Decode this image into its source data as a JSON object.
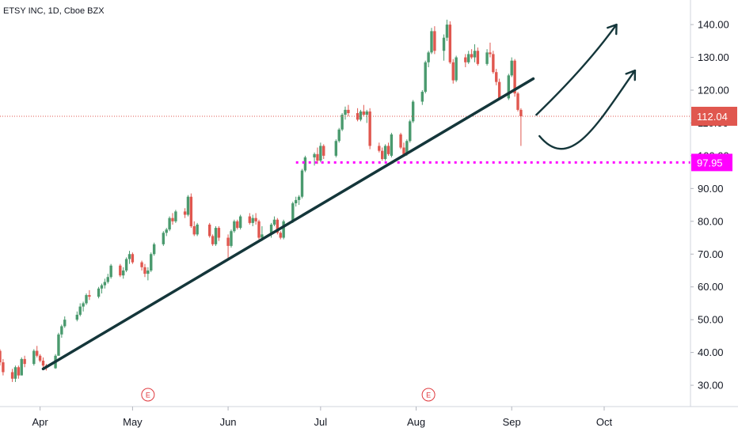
{
  "header": {
    "title": "ETSY INC, 1D, Cboe BZX"
  },
  "colors": {
    "up": "#4a9a6e",
    "down": "#e0574f",
    "trendline": "#14363a",
    "support": "#ff00ff",
    "last_price_bg": "#e0574f",
    "earnings": "#e03a3e"
  },
  "chart_data": {
    "type": "candlestick",
    "title": "ETSY INC, 1D, Cboe BZX",
    "y_ticks": [
      "30.00",
      "40.00",
      "50.00",
      "60.00",
      "70.00",
      "80.00",
      "90.00",
      "100.00",
      "110.00",
      "120.00",
      "130.00",
      "140.00"
    ],
    "y_tick_values": [
      30,
      40,
      50,
      60,
      70,
      80,
      90,
      100,
      110,
      120,
      130,
      140
    ],
    "ylim": [
      23.5,
      147.5
    ],
    "x_ticks": [
      "Apr",
      "May",
      "Jun",
      "Jul",
      "Aug",
      "Sep",
      "Oct"
    ],
    "x_tick_dates": [
      "2020-04-01",
      "2020-05-01",
      "2020-06-01",
      "2020-07-01",
      "2020-08-01",
      "2020-09-01",
      "2020-10-01"
    ],
    "xlim": [
      "2020-03-19",
      "2020-10-29"
    ],
    "last_price": {
      "label": "112.04",
      "value": 112.04
    },
    "support_level": {
      "label": "97.95",
      "value": 97.95
    },
    "earnings_markers": [
      {
        "label": "E",
        "date": "2020-05-06"
      },
      {
        "label": "E",
        "date": "2020-08-05"
      }
    ],
    "trendline": {
      "from": [
        "2020-04-02",
        35.0
      ],
      "to": [
        "2020-09-08",
        123.5
      ]
    },
    "projected_paths": [
      {
        "name": "bullish-path",
        "points": [
          [
            "2020-09-09",
            112.5
          ],
          [
            "2020-09-25",
            127
          ],
          [
            "2020-10-05",
            140
          ]
        ]
      },
      {
        "name": "pullback-path",
        "points": [
          [
            "2020-09-10",
            106
          ],
          [
            "2020-09-20",
            100
          ],
          [
            "2020-09-29",
            110
          ],
          [
            "2020-10-11",
            126
          ]
        ]
      }
    ],
    "candles": [
      [
        "2020-03-18",
        40.5,
        43,
        38,
        40.5
      ],
      [
        "2020-03-19",
        40.5,
        41,
        36,
        37
      ],
      [
        "2020-03-20",
        37,
        38,
        33,
        34
      ],
      [
        "2020-03-23",
        34,
        35,
        31,
        32
      ],
      [
        "2020-03-24",
        32,
        36,
        31,
        35.5
      ],
      [
        "2020-03-25",
        35.5,
        36,
        32,
        33
      ],
      [
        "2020-03-26",
        33,
        38.5,
        33,
        38
      ],
      [
        "2020-03-27",
        38,
        39,
        35.5,
        36.5
      ],
      [
        "2020-03-30",
        36.5,
        41,
        36,
        40.5
      ],
      [
        "2020-03-31",
        40.5,
        42,
        38.5,
        39
      ],
      [
        "2020-04-01",
        39,
        39.5,
        37,
        37.5
      ],
      [
        "2020-04-02",
        37.5,
        38.5,
        35,
        36
      ],
      [
        "2020-04-03",
        36,
        36.5,
        34.5,
        35.2
      ],
      [
        "2020-04-06",
        35.2,
        39.5,
        35,
        39
      ],
      [
        "2020-04-07",
        39,
        46,
        39,
        45.5
      ],
      [
        "2020-04-08",
        45.5,
        48.5,
        44.5,
        48
      ],
      [
        "2020-04-09",
        48,
        51,
        47.5,
        50
      ],
      [
        "2020-04-13",
        50,
        52.5,
        49.5,
        51.5
      ],
      [
        "2020-04-14",
        51.5,
        55,
        51,
        54
      ],
      [
        "2020-04-15",
        54,
        55.5,
        52.5,
        55
      ],
      [
        "2020-04-16",
        55,
        58,
        54.5,
        57.5
      ],
      [
        "2020-04-17",
        57.5,
        59,
        56,
        57
      ],
      [
        "2020-04-20",
        57,
        60,
        56.5,
        59.5
      ],
      [
        "2020-04-21",
        59.5,
        61,
        58,
        60.5
      ],
      [
        "2020-04-22",
        60.5,
        62.5,
        59.5,
        61.5
      ],
      [
        "2020-04-23",
        61.5,
        64,
        61,
        63
      ],
      [
        "2020-04-24",
        63,
        67,
        62.5,
        66.5
      ],
      [
        "2020-04-27",
        66.5,
        67,
        63,
        63.5
      ],
      [
        "2020-04-28",
        63.5,
        66,
        62.5,
        65
      ],
      [
        "2020-04-29",
        65,
        69,
        64.5,
        68.5
      ],
      [
        "2020-04-30",
        68.5,
        71,
        67,
        70
      ],
      [
        "2020-05-01",
        70,
        70.5,
        67,
        67.5
      ],
      [
        "2020-05-04",
        67.5,
        68,
        65,
        66
      ],
      [
        "2020-05-05",
        66,
        67,
        63,
        64
      ],
      [
        "2020-05-06",
        64,
        66,
        62,
        65
      ],
      [
        "2020-05-07",
        65,
        70.5,
        64.5,
        70
      ],
      [
        "2020-05-08",
        70,
        73.5,
        69.5,
        73
      ],
      [
        "2020-05-11",
        73,
        77,
        72.5,
        76.5
      ],
      [
        "2020-05-12",
        76.5,
        78,
        75.5,
        77.5
      ],
      [
        "2020-05-13",
        77.5,
        81.5,
        77,
        81
      ],
      [
        "2020-05-14",
        81,
        82.5,
        79,
        80
      ],
      [
        "2020-05-15",
        80,
        83.5,
        79.5,
        83
      ],
      [
        "2020-05-18",
        83,
        84,
        81,
        82
      ],
      [
        "2020-05-19",
        82,
        88,
        81.5,
        87.5
      ],
      [
        "2020-05-20",
        87.5,
        88.5,
        78,
        78.5
      ],
      [
        "2020-05-21",
        78.5,
        80,
        75.5,
        76
      ],
      [
        "2020-05-22",
        76,
        79.5,
        75.5,
        79
      ],
      [
        "2020-05-26",
        79,
        79.5,
        75,
        75.5
      ],
      [
        "2020-05-27",
        75.5,
        76,
        72.5,
        73
      ],
      [
        "2020-05-28",
        73,
        78.5,
        72.5,
        78
      ],
      [
        "2020-05-29",
        78,
        78.5,
        74,
        75
      ],
      [
        "2020-06-01",
        75,
        76,
        68.5,
        72.5
      ],
      [
        "2020-06-02",
        72.5,
        77.5,
        72,
        77
      ],
      [
        "2020-06-03",
        77,
        80.5,
        76.5,
        80
      ],
      [
        "2020-06-04",
        80,
        80.5,
        77.5,
        78
      ],
      [
        "2020-06-05",
        78,
        82,
        77.5,
        81.5
      ],
      [
        "2020-06-08",
        81.5,
        82.5,
        79,
        79.5
      ],
      [
        "2020-06-09",
        79.5,
        82,
        78.5,
        81
      ],
      [
        "2020-06-10",
        81,
        82.5,
        79,
        80
      ],
      [
        "2020-06-11",
        80,
        80.5,
        74.5,
        75
      ],
      [
        "2020-06-12",
        75,
        78.5,
        74,
        76
      ],
      [
        "2020-06-15",
        76,
        79.5,
        75,
        79
      ],
      [
        "2020-06-16",
        79,
        81.5,
        78.5,
        80.5
      ],
      [
        "2020-06-17",
        80.5,
        81,
        76,
        76.5
      ],
      [
        "2020-06-18",
        76.5,
        77,
        74.5,
        75
      ],
      [
        "2020-06-19",
        75,
        80.5,
        74.5,
        80
      ],
      [
        "2020-06-22",
        80,
        86,
        79.5,
        85.5
      ],
      [
        "2020-06-23",
        85.5,
        87.5,
        84.5,
        86.5
      ],
      [
        "2020-06-24",
        86.5,
        88,
        85,
        87.5
      ],
      [
        "2020-06-25",
        87.5,
        96,
        87,
        95.5
      ],
      [
        "2020-06-26",
        95.5,
        100,
        95,
        99.5
      ],
      [
        "2020-06-29",
        99.5,
        101,
        97,
        100.5
      ],
      [
        "2020-06-30",
        100.5,
        102.5,
        97.5,
        98.5
      ],
      [
        "2020-07-01",
        98.5,
        104,
        98,
        103
      ],
      [
        "2020-07-02",
        103,
        103.5,
        99,
        100
      ],
      [
        "2020-07-06",
        100,
        105,
        99.5,
        104.5
      ],
      [
        "2020-07-07",
        104.5,
        108.5,
        104,
        108
      ],
      [
        "2020-07-08",
        108,
        113,
        107.5,
        112.5
      ],
      [
        "2020-07-09",
        112.5,
        115,
        111,
        114
      ],
      [
        "2020-07-10",
        114,
        115.5,
        112,
        113
      ],
      [
        "2020-07-13",
        113,
        114.5,
        110.5,
        111
      ],
      [
        "2020-07-14",
        111,
        114,
        110.5,
        113.5
      ],
      [
        "2020-07-15",
        113.5,
        115.5,
        112,
        112.5
      ],
      [
        "2020-07-16",
        112.5,
        114,
        110,
        113.5
      ],
      [
        "2020-07-17",
        113.5,
        114.5,
        102,
        103
      ],
      [
        "2020-07-20",
        103,
        104,
        101,
        101.5
      ],
      [
        "2020-07-21",
        101.5,
        102.5,
        98.5,
        99
      ],
      [
        "2020-07-22",
        99,
        103.5,
        98.5,
        103
      ],
      [
        "2020-07-23",
        103,
        104,
        100,
        100.5
      ],
      [
        "2020-07-24",
        100,
        107,
        99.5,
        106.5
      ],
      [
        "2020-07-27",
        106.5,
        107,
        102,
        102.5
      ],
      [
        "2020-07-28",
        102.5,
        104,
        100,
        100.5
      ],
      [
        "2020-07-29",
        100.5,
        105,
        100,
        104.5
      ],
      [
        "2020-07-30",
        104.5,
        111,
        104,
        110.5
      ],
      [
        "2020-07-31",
        110.5,
        117,
        110,
        116.5
      ],
      [
        "2020-08-03",
        116.5,
        120,
        115.5,
        119.5
      ],
      [
        "2020-08-04",
        119.5,
        129,
        119,
        128.5
      ],
      [
        "2020-08-05",
        128.5,
        132,
        127,
        131.5
      ],
      [
        "2020-08-06",
        131.5,
        139,
        131,
        138
      ],
      [
        "2020-08-07",
        138,
        139.5,
        131,
        132
      ],
      [
        "2020-08-10",
        132,
        137,
        129,
        136
      ],
      [
        "2020-08-11",
        136,
        141.5,
        135,
        140
      ],
      [
        "2020-08-12",
        140,
        141,
        128,
        128.5
      ],
      [
        "2020-08-13",
        128.5,
        129.5,
        122,
        123
      ],
      [
        "2020-08-14",
        123,
        130.5,
        122.5,
        130
      ],
      [
        "2020-08-17",
        130,
        131,
        127,
        128.5
      ],
      [
        "2020-08-18",
        128.5,
        132,
        128,
        131
      ],
      [
        "2020-08-19",
        131,
        132.5,
        129.5,
        130
      ],
      [
        "2020-08-20",
        130,
        134,
        128.5,
        132
      ],
      [
        "2020-08-21",
        132,
        133,
        127.5,
        128
      ],
      [
        "2020-08-24",
        128,
        132.5,
        127.5,
        131.5
      ],
      [
        "2020-08-25",
        131.5,
        134.5,
        130,
        131
      ],
      [
        "2020-08-26",
        131,
        132,
        125,
        125.5
      ],
      [
        "2020-08-27",
        125.5,
        126.5,
        121.5,
        122.5
      ],
      [
        "2020-08-28",
        122.5,
        123.5,
        117,
        117.5
      ],
      [
        "2020-08-31",
        117.5,
        125,
        117,
        124.5
      ],
      [
        "2020-09-01",
        124.5,
        130,
        124,
        129
      ],
      [
        "2020-09-02",
        129,
        129.5,
        118,
        119
      ],
      [
        "2020-09-03",
        119,
        119.5,
        113.5,
        114
      ],
      [
        "2020-09-04",
        114,
        114.5,
        103,
        112.04
      ]
    ]
  }
}
